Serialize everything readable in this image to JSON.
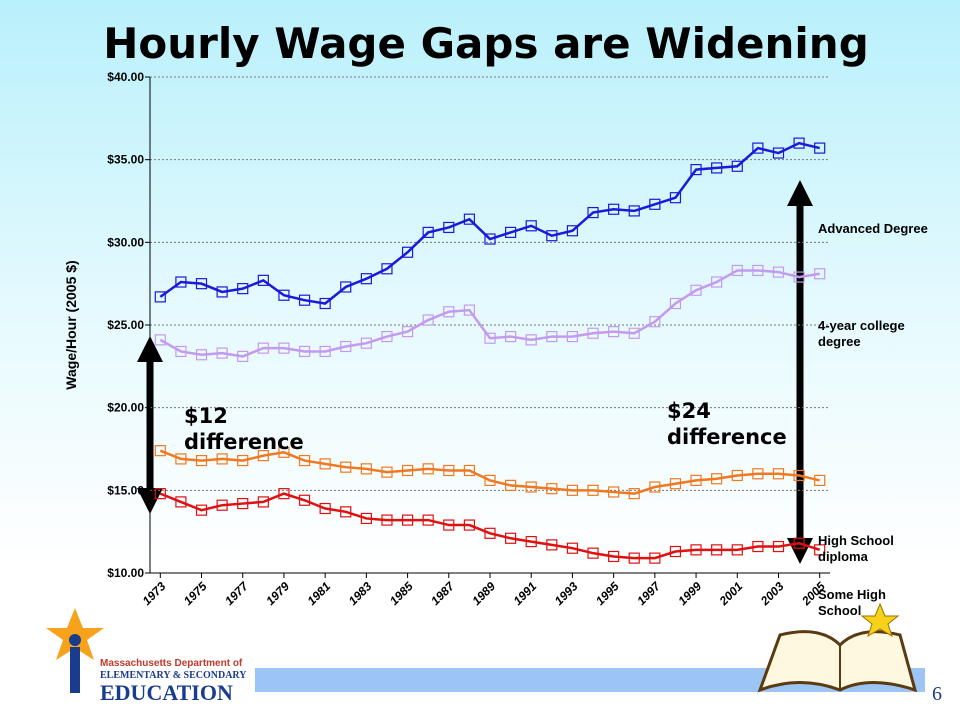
{
  "chart_data": {
    "type": "line",
    "title": "Hourly Wage Gaps are Widening",
    "y_label": "Wage/Hour (2005 $)",
    "x": [
      1973,
      1974,
      1975,
      1976,
      1977,
      1978,
      1979,
      1980,
      1981,
      1982,
      1983,
      1984,
      1985,
      1986,
      1987,
      1988,
      1989,
      1990,
      1991,
      1992,
      1993,
      1994,
      1995,
      1996,
      1997,
      1998,
      1999,
      2000,
      2001,
      2002,
      2003,
      2004,
      2005
    ],
    "xlim": [
      1972.5,
      2005.5
    ],
    "xticks": [
      1973,
      1975,
      1977,
      1979,
      1981,
      1983,
      1985,
      1987,
      1989,
      1991,
      1993,
      1995,
      1997,
      1999,
      2001,
      2003,
      2005
    ],
    "ylim": [
      10,
      40
    ],
    "yticks": [
      {
        "value": 10,
        "label": "$10.00"
      },
      {
        "value": 15,
        "label": "$15.00"
      },
      {
        "value": 20,
        "label": "$20.00"
      },
      {
        "value": 25,
        "label": "$25.00"
      },
      {
        "value": 30,
        "label": "$30.00"
      },
      {
        "value": 35,
        "label": "$35.00"
      },
      {
        "value": 40,
        "label": "$40.00"
      }
    ],
    "grid": true,
    "series": [
      {
        "name": "Advanced Degree",
        "color": "#1a1ad8",
        "values": [
          26.7,
          27.6,
          27.5,
          27.0,
          27.2,
          27.7,
          26.8,
          26.5,
          26.3,
          27.3,
          27.8,
          28.4,
          29.4,
          30.6,
          30.9,
          31.4,
          30.2,
          30.6,
          31.0,
          30.4,
          30.7,
          31.8,
          32.0,
          31.9,
          32.3,
          32.7,
          34.4,
          34.5,
          34.6,
          35.7,
          35.4,
          36.0,
          35.7
        ]
      },
      {
        "name": "4-year college degree",
        "color": "#c49aee",
        "values": [
          24.1,
          23.4,
          23.2,
          23.3,
          23.1,
          23.6,
          23.6,
          23.4,
          23.4,
          23.7,
          23.9,
          24.3,
          24.6,
          25.3,
          25.8,
          25.9,
          24.2,
          24.3,
          24.1,
          24.3,
          24.3,
          24.5,
          24.6,
          24.5,
          25.2,
          26.3,
          27.1,
          27.6,
          28.3,
          28.3,
          28.2,
          27.9,
          28.1
        ]
      },
      {
        "name": "High School diploma",
        "color": "#f07820",
        "values": [
          17.4,
          16.9,
          16.8,
          16.9,
          16.8,
          17.1,
          17.3,
          16.8,
          16.6,
          16.4,
          16.3,
          16.1,
          16.2,
          16.3,
          16.2,
          16.2,
          15.6,
          15.3,
          15.2,
          15.1,
          15.0,
          15.0,
          14.9,
          14.8,
          15.2,
          15.4,
          15.6,
          15.7,
          15.9,
          16.0,
          16.0,
          15.9,
          15.6
        ]
      },
      {
        "name": "Some High School",
        "color": "#e01010",
        "values": [
          14.8,
          14.3,
          13.8,
          14.1,
          14.2,
          14.3,
          14.8,
          14.4,
          13.9,
          13.7,
          13.3,
          13.2,
          13.2,
          13.2,
          12.9,
          12.9,
          12.4,
          12.1,
          11.9,
          11.7,
          11.5,
          11.2,
          11.0,
          10.9,
          10.9,
          11.3,
          11.4,
          11.4,
          11.4,
          11.6,
          11.6,
          11.8,
          11.4
        ]
      }
    ],
    "annotations": [
      "$12 difference",
      "$24 difference"
    ]
  },
  "footer": {
    "org_line1": "Massachusetts Department of",
    "org_line2": "ELEMENTARY & SECONDARY",
    "org_line3": "EDUCATION",
    "page_number": "6"
  }
}
